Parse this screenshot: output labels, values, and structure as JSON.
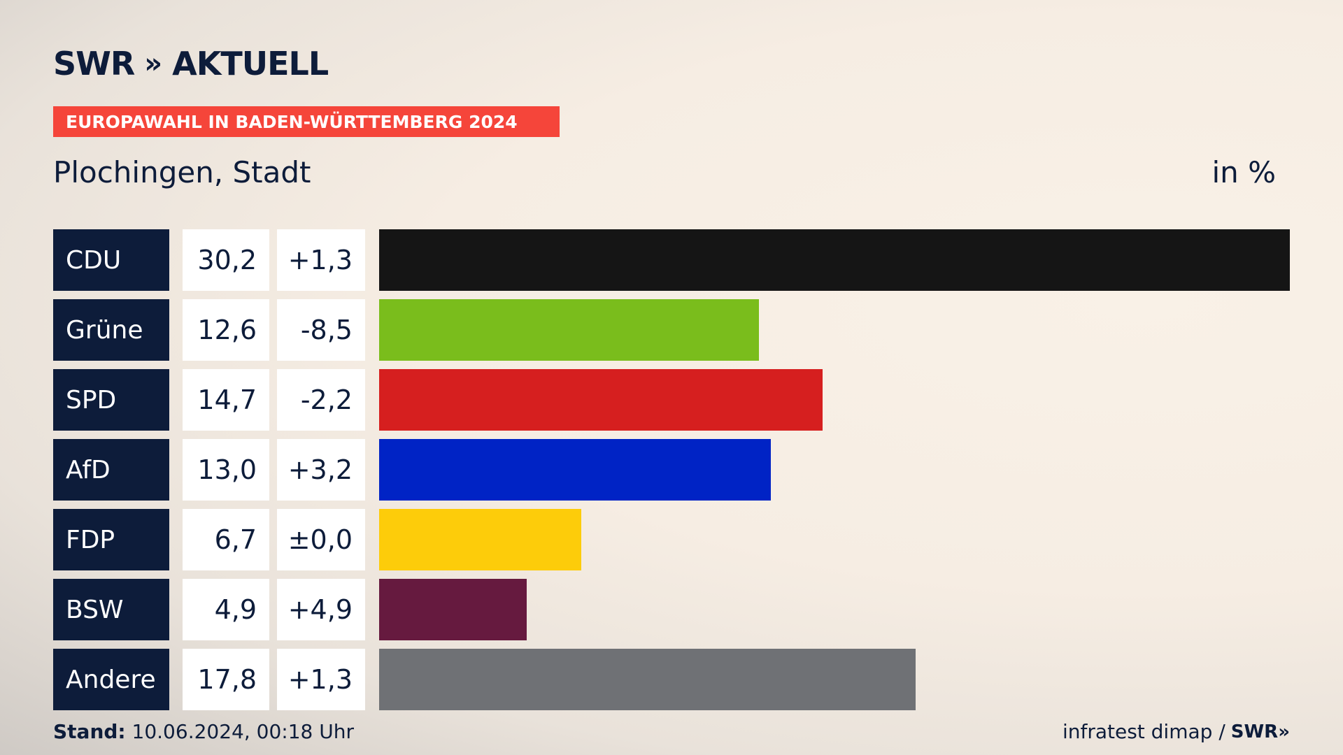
{
  "logo": {
    "brand": "SWR",
    "chevrons": "»",
    "name": "AKTUELL"
  },
  "banner": "EUROPAWAHL IN BADEN-WÜRTTEMBERG 2024",
  "subtitle": "Plochingen, Stadt",
  "unit": "in %",
  "footer": {
    "stand_label": "Stand:",
    "stand_value": "10.06.2024, 00:18 Uhr",
    "source": "infratest dimap /",
    "source_logo": "SWR»"
  },
  "chart_data": {
    "type": "bar",
    "orientation": "horizontal",
    "categories": [
      "CDU",
      "Grüne",
      "SPD",
      "AfD",
      "FDP",
      "BSW",
      "Andere"
    ],
    "values": [
      30.2,
      12.6,
      14.7,
      13.0,
      6.7,
      4.9,
      17.8
    ],
    "value_labels": [
      "30,2",
      "12,6",
      "14,7",
      "13,0",
      "6,7",
      "4,9",
      "17,8"
    ],
    "diff_labels": [
      "+1,3",
      "-8,5",
      "-2,2",
      "+3,2",
      "±0,0",
      "+4,9",
      "+1,3"
    ],
    "colors": [
      "#151515",
      "#7abd1c",
      "#d61f1f",
      "#0023c5",
      "#fdcc0a",
      "#661a3f",
      "#6f7175"
    ],
    "xlim": [
      0,
      30.2
    ],
    "grid": false
  }
}
